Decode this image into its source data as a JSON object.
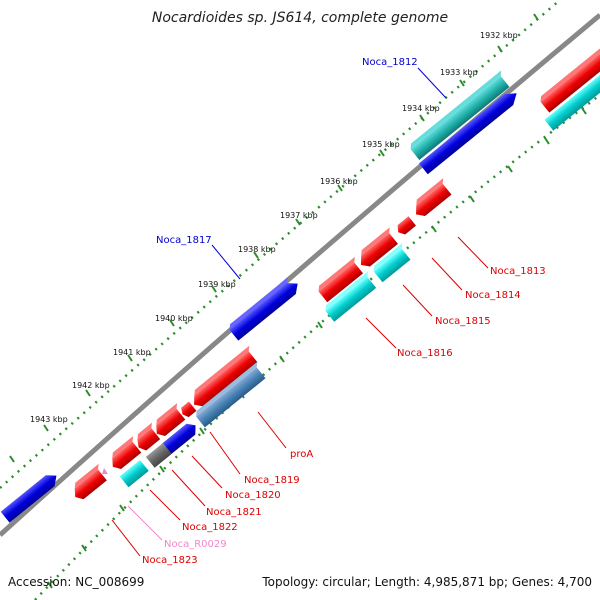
{
  "title": "Nocardioides sp. JS614, complete genome",
  "colors": {
    "red": "#ee0000",
    "blue": "#0000dd",
    "cyan": "#00cccc",
    "steel": "#4682b4",
    "gray_track": "#888888",
    "dots": "#2e8b2e",
    "pink": "#ee88cc"
  },
  "ticks": [
    "1932 kbp",
    "1933 kbp",
    "1934 kbp",
    "1935 kbp",
    "1936 kbp",
    "1937 kbp",
    "1938 kbp",
    "1939 kbp",
    "1940 kbp",
    "1941 kbp",
    "1942 kbp",
    "1943 kbp"
  ],
  "gene_labels": {
    "noca_1812": "Noca_1812",
    "noca_1817": "Noca_1817",
    "noca_1813": "Noca_1813",
    "noca_1814": "Noca_1814",
    "noca_1815": "Noca_1815",
    "noca_1816": "Noca_1816",
    "proa": "proA",
    "noca_1819": "Noca_1819",
    "noca_1820": "Noca_1820",
    "noca_1821": "Noca_1821",
    "noca_1822": "Noca_1822",
    "noca_r0029": "Noca_R0029",
    "noca_1823": "Noca_1823"
  },
  "footer": {
    "accession": "Accession: NC_008699",
    "summary": "Topology: circular; Length: 4,985,871 bp; Genes: 4,700"
  }
}
